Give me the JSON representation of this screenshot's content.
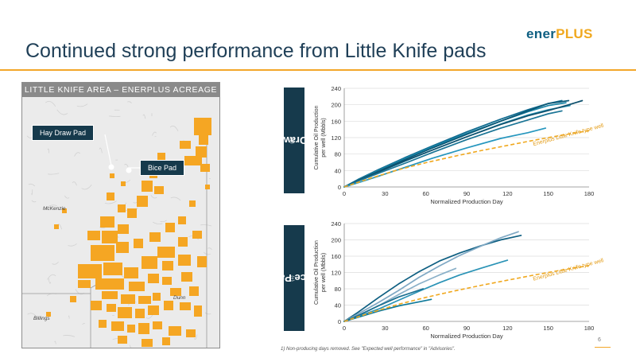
{
  "slide": {
    "title": "Continued strong performance from Little Knife pads",
    "logo_part1": "ener",
    "logo_part2": "PLUS",
    "page_number": "6",
    "footnote": "1)  Non-producing days removed. See \"Expected well performance\" in \"Advisories\"."
  },
  "map": {
    "header": "LITTLE KNIFE AREA – ENERPLUS ACREAGE",
    "callout_hay": "Hay Draw Pad",
    "callout_bice": "Bice Pad",
    "county_mckenzie": "McKenzie",
    "county_dunn": "Dunn",
    "county_billings": "Billings",
    "acreage_color": "#f5a623"
  },
  "chart_data": [
    {
      "type": "line",
      "panel_label": "Hay Draw Pad",
      "panel_label_sup": "(1)",
      "xlabel": "Normalized Production Day",
      "ylabel": "Cumulative Oil Production per well (Mbbls)",
      "xlim": [
        0,
        180
      ],
      "ylim": [
        0,
        240
      ],
      "xticks": [
        0,
        30,
        60,
        90,
        120,
        150,
        180
      ],
      "yticks": [
        0,
        40,
        80,
        120,
        160,
        200,
        240
      ],
      "grid": "horizontal",
      "type_curve_label": "Enerplus Little Knife type well",
      "type_curve": {
        "x": [
          0,
          20,
          40,
          60,
          80,
          100,
          120,
          140,
          160,
          180
        ],
        "y": [
          0,
          22,
          42,
          59,
          74,
          88,
          101,
          114,
          126,
          137
        ]
      },
      "series": [
        {
          "x": [
            0,
            10,
            25,
            45,
            65,
            90,
            115,
            135,
            150,
            160
          ],
          "y": [
            0,
            18,
            42,
            72,
            100,
            134,
            165,
            188,
            203,
            210
          ],
          "color": "#0f6a8f"
        },
        {
          "x": [
            0,
            10,
            25,
            45,
            65,
            90,
            115,
            135,
            150,
            163
          ],
          "y": [
            0,
            17,
            40,
            70,
            98,
            130,
            160,
            183,
            198,
            205
          ],
          "color": "#1a84a6"
        },
        {
          "x": [
            0,
            10,
            25,
            45,
            65,
            90,
            115,
            135,
            150,
            165
          ],
          "y": [
            0,
            16,
            38,
            67,
            95,
            128,
            160,
            185,
            203,
            210
          ],
          "color": "#0b5876"
        },
        {
          "x": [
            0,
            10,
            25,
            45,
            65,
            90,
            115,
            135,
            150,
            158,
            166
          ],
          "y": [
            0,
            15,
            36,
            63,
            90,
            122,
            153,
            175,
            188,
            193,
            198
          ],
          "color": "#2a90b0"
        },
        {
          "x": [
            0,
            10,
            25,
            45,
            65,
            90,
            115,
            135,
            150,
            165,
            175
          ],
          "y": [
            0,
            15,
            36,
            64,
            90,
            122,
            152,
            173,
            186,
            200,
            210
          ],
          "color": "#0d4f6c"
        },
        {
          "x": [
            0,
            10,
            25,
            45,
            65,
            90,
            115,
            135,
            150,
            160
          ],
          "y": [
            0,
            14,
            33,
            58,
            84,
            115,
            143,
            163,
            178,
            185
          ],
          "color": "#1b7596"
        },
        {
          "x": [
            0,
            10,
            25,
            45,
            65,
            90,
            115,
            135,
            148
          ],
          "y": [
            0,
            10,
            26,
            48,
            70,
            95,
            118,
            132,
            143
          ],
          "color": "#2596be"
        }
      ]
    },
    {
      "type": "line",
      "panel_label": "Bice Pad",
      "panel_label_sup": "(1)",
      "xlabel": "Normalized Production Day",
      "ylabel": "Cumulative Oil Production per well (Mbbls)",
      "xlim": [
        0,
        180
      ],
      "ylim": [
        0,
        240
      ],
      "xticks": [
        0,
        30,
        60,
        90,
        120,
        150,
        180
      ],
      "yticks": [
        0,
        40,
        80,
        120,
        160,
        200,
        240
      ],
      "grid": "horizontal",
      "type_curve_label": "Enerplus Little Knife type well",
      "type_curve": {
        "x": [
          0,
          20,
          40,
          60,
          80,
          100,
          120,
          140,
          160,
          180
        ],
        "y": [
          0,
          22,
          42,
          59,
          74,
          88,
          101,
          114,
          126,
          137
        ]
      },
      "series": [
        {
          "x": [
            0,
            10,
            25,
            40,
            55,
            70,
            85,
            100,
            115,
            130
          ],
          "y": [
            0,
            22,
            58,
            92,
            122,
            148,
            168,
            185,
            200,
            211
          ],
          "color": "#0e5f82"
        },
        {
          "x": [
            0,
            10,
            25,
            40,
            55,
            70,
            85,
            100,
            115,
            128
          ],
          "y": [
            0,
            18,
            46,
            76,
            108,
            136,
            162,
            184,
            205,
            220
          ],
          "color": "#7fa8c4"
        },
        {
          "x": [
            0,
            10,
            25,
            40,
            55,
            70,
            82
          ],
          "y": [
            0,
            14,
            38,
            66,
            92,
            114,
            130
          ],
          "color": "#8ab0c8"
        },
        {
          "x": [
            0,
            10,
            25,
            40,
            55,
            70,
            85,
            100,
            120
          ],
          "y": [
            0,
            12,
            30,
            52,
            74,
            95,
            114,
            130,
            150
          ],
          "color": "#2a93b6"
        },
        {
          "x": [
            0,
            10,
            25,
            40,
            58
          ],
          "y": [
            0,
            14,
            38,
            60,
            80
          ],
          "color": "#1a6f90"
        },
        {
          "x": [
            0,
            10,
            25,
            40,
            55,
            64
          ],
          "y": [
            0,
            10,
            25,
            38,
            48,
            54
          ],
          "color": "#0f7a9a"
        }
      ]
    }
  ]
}
